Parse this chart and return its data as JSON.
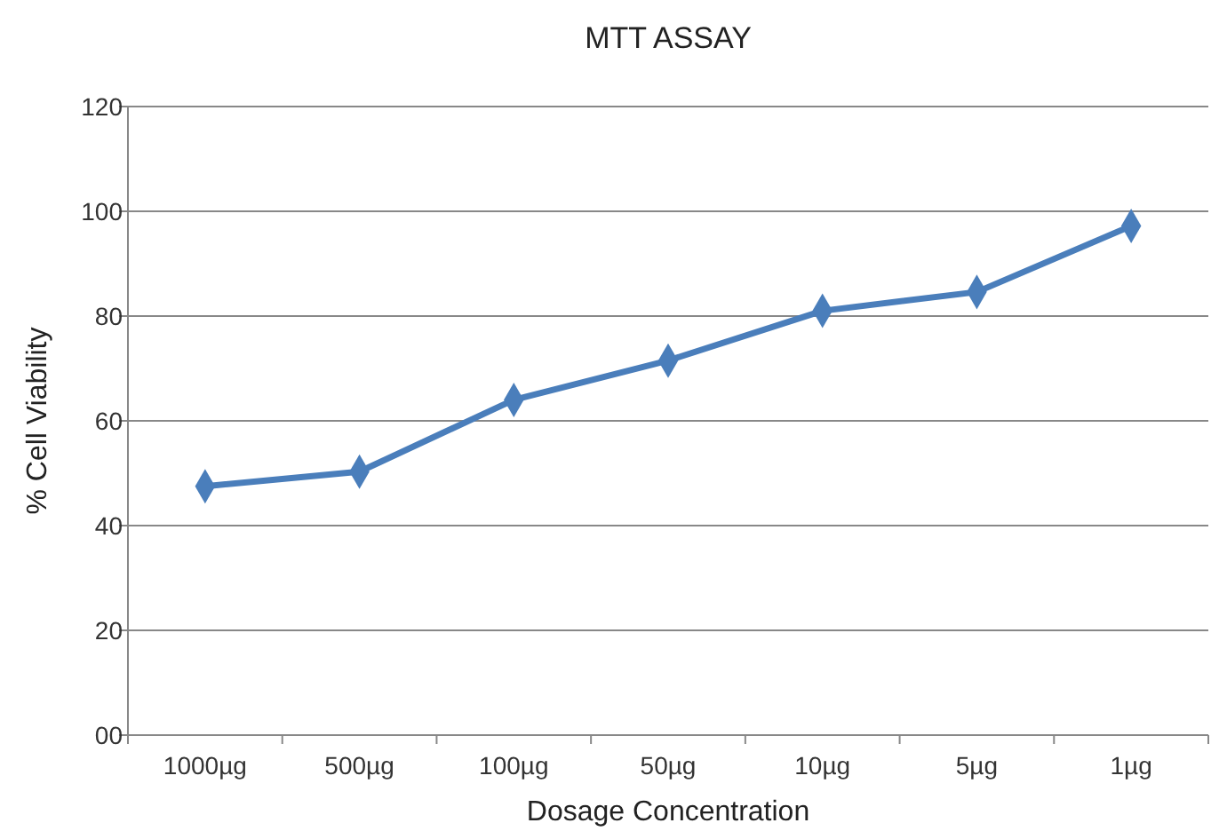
{
  "chart_data": {
    "type": "line",
    "title": "MTT ASSAY",
    "xlabel": "Dosage Concentration",
    "ylabel": "% Cell Viability",
    "categories": [
      "1000µg",
      "500µg",
      "100µg",
      "50µg",
      "10µg",
      "5µg",
      "1µg"
    ],
    "series": [
      {
        "color": "#4a7ebb",
        "values": [
          47.5,
          50.3,
          64,
          71.5,
          81,
          84.6,
          97.2
        ]
      }
    ],
    "ylim": [
      0,
      120
    ],
    "yticks": [
      {
        "value": 0,
        "label": "00"
      },
      20,
      40,
      60,
      80,
      100,
      120
    ],
    "grid": "y",
    "marker": "diamond",
    "line_style": "solid"
  }
}
